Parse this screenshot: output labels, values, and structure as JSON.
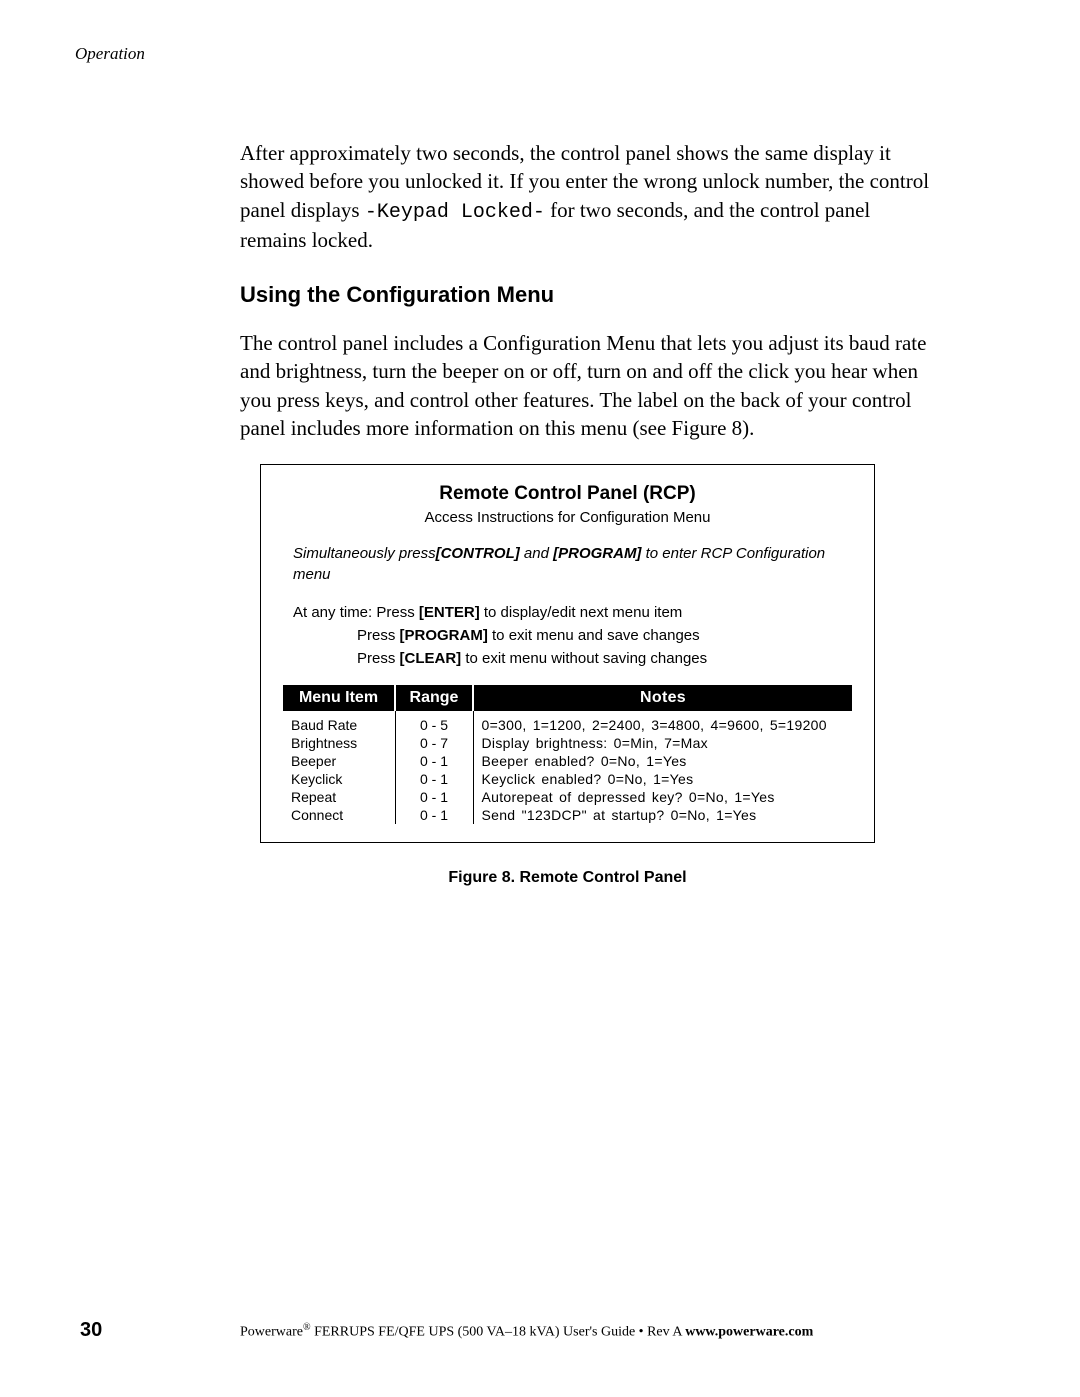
{
  "header": {
    "section": "Operation"
  },
  "body": {
    "para1_a": "After approximately two seconds, the control panel shows the same display it showed before you unlocked it. If you enter the wrong unlock number, the control panel displays ",
    "para1_code": "-Keypad Locked-",
    "para1_b": " for two seconds, and the control panel remains locked.",
    "heading": "Using the Configuration Menu",
    "para2": "The control panel includes a Configuration Menu that lets you adjust its baud rate and brightness, turn the beeper on or off, turn on and off the click you hear when you press keys, and control other features. The label on the back of your control panel includes more information on this menu (see Figure 8)."
  },
  "figure": {
    "title": "Remote Control Panel (RCP)",
    "subtitle": "Access Instructions for Configuration Menu",
    "instr_a": "Simultaneously press",
    "instr_kw1": "[CONTROL]",
    "instr_mid": " and ",
    "instr_kw2": "[PROGRAM]",
    "instr_b": " to enter RCP Configuration menu",
    "line1_a": "At any time: Press ",
    "line1_kw": "[ENTER]",
    "line1_b": " to display/edit next menu item",
    "line2_a": "Press ",
    "line2_kw": "[PROGRAM]",
    "line2_b": " to exit menu and save changes",
    "line3_a": "Press ",
    "line3_kw": "[CLEAR]",
    "line3_b": " to exit menu without saving changes",
    "table": {
      "headers": [
        "Menu Item",
        "Range",
        "Notes"
      ],
      "rows": [
        {
          "item": "Baud Rate",
          "range": "0 - 5",
          "notes": "0=300, 1=1200, 2=2400, 3=4800, 4=9600, 5=19200"
        },
        {
          "item": "Brightness",
          "range": "0 - 7",
          "notes": "Display brightness: 0=Min, 7=Max"
        },
        {
          "item": "Beeper",
          "range": "0 - 1",
          "notes": "Beeper enabled? 0=No, 1=Yes"
        },
        {
          "item": "Keyclick",
          "range": "0 - 1",
          "notes": "Keyclick enabled? 0=No, 1=Yes"
        },
        {
          "item": "Repeat",
          "range": "0 - 1",
          "notes": "Autorepeat of depressed key? 0=No, 1=Yes"
        },
        {
          "item": "Connect",
          "range": "0 - 1",
          "notes": "Send \"123DCP\" at startup? 0=No, 1=Yes"
        }
      ]
    },
    "caption": "Figure 8. Remote Control Panel"
  },
  "footer": {
    "page": "30",
    "text_a": "Powerware",
    "reg": "®",
    "text_b": " FERRUPS FE/QFE UPS (500 VA–18 kVA) User's Guide  •  Rev A ",
    "url": "www.powerware.com"
  }
}
